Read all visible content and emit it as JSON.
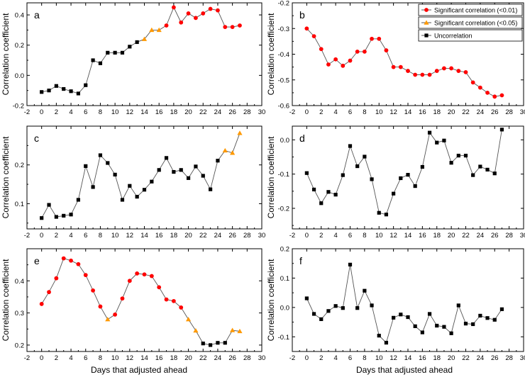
{
  "figure": {
    "xlabel": "Days that adjusted ahead",
    "ylabel": "Correlation coefficient",
    "legend": [
      {
        "label": "Significant correlation (<0.01)",
        "marker": "circle",
        "color": "#ff0000",
        "name": "legend-entry-p001"
      },
      {
        "label": "Significant correlation (<0.05)",
        "marker": "triangle",
        "color": "#ff9900",
        "name": "legend-entry-p005"
      },
      {
        "label": "Uncorrelation",
        "marker": "square",
        "color": "#000000",
        "name": "legend-entry-uncorrelation"
      }
    ]
  },
  "colors": {
    "p001": "#ff0000",
    "p005": "#ff9900",
    "none": "#000000",
    "line": "#555555",
    "axis": "#000000"
  },
  "chart_data": [
    {
      "id": "a",
      "type": "line",
      "panel_label": "a",
      "xlim": [
        -2,
        30
      ],
      "ylim": [
        -0.2,
        0.48
      ],
      "xticks": [
        -2,
        0,
        2,
        4,
        6,
        8,
        10,
        12,
        14,
        16,
        18,
        20,
        22,
        24,
        26,
        28,
        30
      ],
      "yticks": [
        -0.2,
        0.0,
        0.2,
        0.4
      ],
      "ytick_labels": [
        "-0.2",
        "0.0",
        "0.2",
        "0.4"
      ],
      "x": [
        0,
        1,
        2,
        3,
        4,
        5,
        6,
        7,
        8,
        9,
        10,
        11,
        12,
        13,
        14,
        15,
        16,
        17,
        18,
        19,
        20,
        21,
        22,
        23,
        24,
        25,
        26,
        27
      ],
      "y": [
        -0.11,
        -0.1,
        -0.07,
        -0.09,
        -0.105,
        -0.12,
        -0.065,
        0.1,
        0.08,
        0.15,
        0.15,
        0.15,
        0.19,
        0.22,
        0.24,
        0.3,
        0.3,
        0.33,
        0.45,
        0.35,
        0.41,
        0.38,
        0.41,
        0.44,
        0.43,
        0.32,
        0.32,
        0.33
      ],
      "sig": [
        "n",
        "n",
        "n",
        "n",
        "n",
        "n",
        "n",
        "n",
        "n",
        "n",
        "n",
        "n",
        "n",
        "n",
        "t",
        "t",
        "t",
        "c",
        "c",
        "c",
        "c",
        "c",
        "c",
        "c",
        "c",
        "c",
        "c",
        "c"
      ]
    },
    {
      "id": "b",
      "type": "line",
      "panel_label": "b",
      "xlim": [
        -2,
        30
      ],
      "ylim": [
        -0.6,
        -0.2
      ],
      "xticks": [
        -2,
        0,
        2,
        4,
        6,
        8,
        10,
        12,
        14,
        16,
        18,
        20,
        22,
        24,
        26,
        28,
        30
      ],
      "yticks": [
        -0.6,
        -0.5,
        -0.4,
        -0.3,
        -0.2
      ],
      "ytick_labels": [
        "-0.6",
        "-0.5",
        "-0.4",
        "-0.3",
        "-0.2"
      ],
      "legend": true,
      "x": [
        0,
        1,
        2,
        3,
        4,
        5,
        6,
        7,
        8,
        9,
        10,
        11,
        12,
        13,
        14,
        15,
        16,
        17,
        18,
        19,
        20,
        21,
        22,
        23,
        24,
        25,
        26,
        27
      ],
      "y": [
        -0.3,
        -0.33,
        -0.38,
        -0.44,
        -0.42,
        -0.445,
        -0.425,
        -0.39,
        -0.39,
        -0.34,
        -0.34,
        -0.385,
        -0.45,
        -0.45,
        -0.465,
        -0.48,
        -0.48,
        -0.48,
        -0.465,
        -0.455,
        -0.455,
        -0.465,
        -0.47,
        -0.51,
        -0.53,
        -0.55,
        -0.565,
        -0.56
      ],
      "sig": [
        "c",
        "c",
        "c",
        "c",
        "c",
        "c",
        "c",
        "c",
        "c",
        "c",
        "c",
        "c",
        "c",
        "c",
        "c",
        "c",
        "c",
        "c",
        "c",
        "c",
        "c",
        "c",
        "c",
        "c",
        "c",
        "c",
        "c",
        "c"
      ]
    },
    {
      "id": "c",
      "type": "line",
      "panel_label": "c",
      "xlim": [
        -2,
        30
      ],
      "ylim": [
        0.035,
        0.3
      ],
      "xticks": [
        -2,
        0,
        2,
        4,
        6,
        8,
        10,
        12,
        14,
        16,
        18,
        20,
        22,
        24,
        26,
        28,
        30
      ],
      "yticks": [
        0.1,
        0.2
      ],
      "ytick_labels": [
        "0.1",
        "0.2"
      ],
      "x": [
        0,
        1,
        2,
        3,
        4,
        5,
        6,
        7,
        8,
        9,
        10,
        11,
        12,
        13,
        14,
        15,
        16,
        17,
        18,
        19,
        20,
        21,
        22,
        23,
        24,
        25,
        26,
        27
      ],
      "y": [
        0.063,
        0.097,
        0.066,
        0.069,
        0.072,
        0.11,
        0.197,
        0.143,
        0.225,
        0.205,
        0.175,
        0.11,
        0.146,
        0.118,
        0.136,
        0.157,
        0.187,
        0.218,
        0.182,
        0.187,
        0.166,
        0.196,
        0.172,
        0.137,
        0.211,
        0.237,
        0.231,
        0.282
      ],
      "sig": [
        "n",
        "n",
        "n",
        "n",
        "n",
        "n",
        "n",
        "n",
        "n",
        "n",
        "n",
        "n",
        "n",
        "n",
        "n",
        "n",
        "n",
        "n",
        "n",
        "n",
        "n",
        "n",
        "n",
        "n",
        "n",
        "t",
        "t",
        "t"
      ]
    },
    {
      "id": "d",
      "type": "line",
      "panel_label": "d",
      "xlim": [
        -2,
        30
      ],
      "ylim": [
        -0.26,
        0.04
      ],
      "xticks": [
        -2,
        0,
        2,
        4,
        6,
        8,
        10,
        12,
        14,
        16,
        18,
        20,
        22,
        24,
        26,
        28,
        30
      ],
      "yticks": [
        -0.2,
        -0.1,
        0.0
      ],
      "ytick_labels": [
        "-0.2",
        "-0.1",
        "0.0"
      ],
      "x": [
        0,
        1,
        2,
        3,
        4,
        5,
        6,
        7,
        8,
        9,
        10,
        11,
        12,
        13,
        14,
        15,
        16,
        17,
        18,
        19,
        20,
        21,
        22,
        23,
        24,
        25,
        26,
        27
      ],
      "y": [
        -0.097,
        -0.145,
        -0.185,
        -0.152,
        -0.16,
        -0.103,
        -0.018,
        -0.077,
        -0.049,
        -0.115,
        -0.213,
        -0.218,
        -0.157,
        -0.112,
        -0.102,
        -0.135,
        -0.079,
        0.021,
        -0.008,
        -0.002,
        -0.067,
        -0.046,
        -0.046,
        -0.103,
        -0.078,
        -0.087,
        -0.098,
        0.03
      ],
      "sig": [
        "n",
        "n",
        "n",
        "n",
        "n",
        "n",
        "n",
        "n",
        "n",
        "n",
        "n",
        "n",
        "n",
        "n",
        "n",
        "n",
        "n",
        "n",
        "n",
        "n",
        "n",
        "n",
        "n",
        "n",
        "n",
        "n",
        "n",
        "n"
      ]
    },
    {
      "id": "e",
      "type": "line",
      "panel_label": "e",
      "xlim": [
        -2,
        30
      ],
      "ylim": [
        0.18,
        0.5
      ],
      "xticks": [
        -2,
        0,
        2,
        4,
        6,
        8,
        10,
        12,
        14,
        16,
        18,
        20,
        22,
        24,
        26,
        28,
        30
      ],
      "yticks": [
        0.2,
        0.3,
        0.4
      ],
      "ytick_labels": [
        "0.2",
        "0.3",
        "0.4"
      ],
      "x": [
        0,
        1,
        2,
        3,
        4,
        5,
        6,
        7,
        8,
        9,
        10,
        11,
        12,
        13,
        14,
        15,
        16,
        17,
        18,
        19,
        20,
        21,
        22,
        23,
        24,
        25,
        26,
        27
      ],
      "y": [
        0.328,
        0.365,
        0.408,
        0.47,
        0.463,
        0.452,
        0.418,
        0.37,
        0.32,
        0.28,
        0.295,
        0.345,
        0.4,
        0.423,
        0.42,
        0.415,
        0.38,
        0.342,
        0.337,
        0.317,
        0.28,
        0.245,
        0.205,
        0.2,
        0.207,
        0.207,
        0.246,
        0.243
      ],
      "sig": [
        "c",
        "c",
        "c",
        "c",
        "c",
        "c",
        "c",
        "c",
        "c",
        "t",
        "c",
        "c",
        "c",
        "c",
        "c",
        "c",
        "c",
        "c",
        "c",
        "c",
        "t",
        "t",
        "n",
        "n",
        "n",
        "n",
        "t",
        "t"
      ]
    },
    {
      "id": "f",
      "type": "line",
      "panel_label": "f",
      "xlim": [
        -2,
        30
      ],
      "ylim": [
        -0.15,
        0.2
      ],
      "xticks": [
        -2,
        0,
        2,
        4,
        6,
        8,
        10,
        12,
        14,
        16,
        18,
        20,
        22,
        24,
        26,
        28,
        30
      ],
      "yticks": [
        -0.1,
        0.0,
        0.1,
        0.2
      ],
      "ytick_labels": [
        "-0.1",
        "0.0",
        "0.1",
        "0.2"
      ],
      "x": [
        0,
        1,
        2,
        3,
        4,
        5,
        6,
        7,
        8,
        9,
        10,
        11,
        12,
        13,
        14,
        15,
        16,
        17,
        18,
        19,
        20,
        21,
        22,
        23,
        24,
        25,
        26,
        27
      ],
      "y": [
        0.031,
        -0.022,
        -0.04,
        -0.012,
        0.005,
        -0.002,
        0.146,
        -0.002,
        0.057,
        0.007,
        -0.096,
        -0.12,
        -0.035,
        -0.024,
        -0.033,
        -0.064,
        -0.085,
        -0.022,
        -0.062,
        -0.066,
        -0.088,
        0.007,
        -0.055,
        -0.057,
        -0.028,
        -0.036,
        -0.042,
        -0.006
      ],
      "sig": [
        "n",
        "n",
        "n",
        "n",
        "n",
        "n",
        "n",
        "n",
        "n",
        "n",
        "n",
        "n",
        "n",
        "n",
        "n",
        "n",
        "n",
        "n",
        "n",
        "n",
        "n",
        "n",
        "n",
        "n",
        "n",
        "n",
        "n",
        "n"
      ]
    }
  ]
}
